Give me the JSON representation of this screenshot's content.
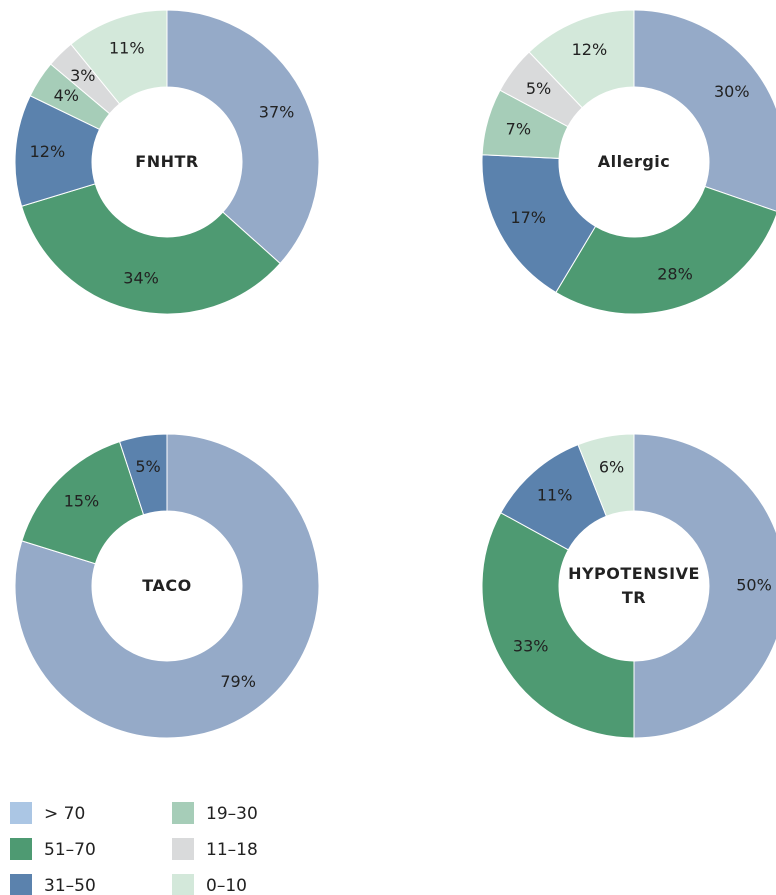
{
  "chart_data": [
    {
      "type": "pie",
      "title": "FNHTR",
      "categories": [
        "> 70",
        "51–70",
        "31–50",
        "19–30",
        "11–18",
        "0–10"
      ],
      "values": [
        37,
        34,
        12,
        4,
        3,
        11
      ],
      "value_labels": [
        "37%",
        "34%",
        "12%",
        "4%",
        "3%",
        "11%"
      ],
      "colors": [
        "#95aac8",
        "#4e9a72",
        "#5b82ad",
        "#a6cdb8",
        "#d9dadb",
        "#d3e8da"
      ]
    },
    {
      "type": "pie",
      "title": "Allergic",
      "categories": [
        "> 70",
        "51–70",
        "31–50",
        "19–30",
        "11–18",
        "0–10"
      ],
      "values": [
        30,
        28,
        17,
        7,
        5,
        12
      ],
      "value_labels": [
        "30%",
        "28%",
        "17%",
        "7%",
        "5%",
        "12%"
      ],
      "colors": [
        "#95aac8",
        "#4e9a72",
        "#5b82ad",
        "#a6cdb8",
        "#d9dadb",
        "#d3e8da"
      ]
    },
    {
      "type": "pie",
      "title": "TACO",
      "categories": [
        "> 70",
        "51–70",
        "31–50"
      ],
      "values": [
        79,
        15,
        5
      ],
      "value_labels": [
        "79%",
        "15%",
        "5%"
      ],
      "colors": [
        "#95aac8",
        "#4e9a72",
        "#5b82ad"
      ]
    },
    {
      "type": "pie",
      "title": "HYPOTENSIVE TR",
      "categories": [
        "> 70",
        "51–70",
        "31–50",
        "0–10"
      ],
      "values": [
        50,
        33,
        11,
        6
      ],
      "value_labels": [
        "50%",
        "33%",
        "11%",
        "6%"
      ],
      "colors": [
        "#95aac8",
        "#4e9a72",
        "#5b82ad",
        "#d3e8da"
      ]
    }
  ],
  "legend": {
    "items": [
      {
        "name": "> 70",
        "color": "#abc6e4"
      },
      {
        "name": "51–70",
        "color": "#4e9a72"
      },
      {
        "name": "31–50",
        "color": "#5b82ad"
      },
      {
        "name": "19–30",
        "color": "#a6cdb8"
      },
      {
        "name": "11–18",
        "color": "#d9dadb"
      },
      {
        "name": "0–10",
        "color": "#d3e8da"
      }
    ]
  }
}
